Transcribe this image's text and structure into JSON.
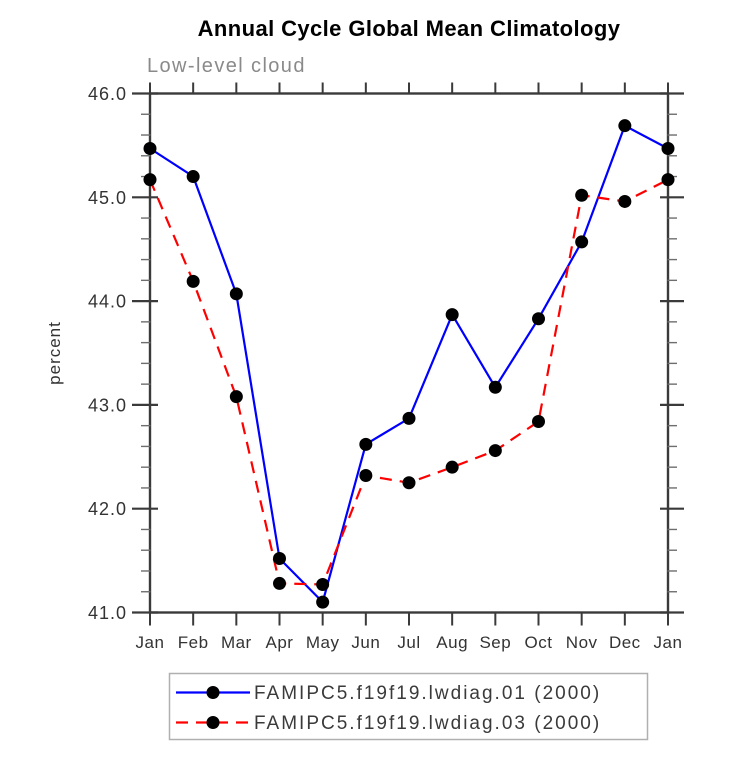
{
  "title": "Annual Cycle Global Mean Climatology",
  "chart_data": {
    "type": "line",
    "title": "Annual Cycle Global Mean Climatology",
    "subtitle": "Low-level cloud",
    "ylabel": "percent",
    "xlabel": "",
    "categories": [
      "Jan",
      "Feb",
      "Mar",
      "Apr",
      "May",
      "Jun",
      "Jul",
      "Aug",
      "Sep",
      "Oct",
      "Nov",
      "Dec",
      "Jan"
    ],
    "ylim": [
      41.0,
      46.0
    ],
    "ytick_values": [
      41.0,
      42.0,
      43.0,
      44.0,
      45.0,
      46.0
    ],
    "ytick_labels": [
      "41.0",
      "42.0",
      "43.0",
      "44.0",
      "45.0",
      "46.0"
    ],
    "ytick_minor_step": 0.2,
    "grid": false,
    "legend_position": "bottom",
    "series": [
      {
        "name": "FAMIPC5.f19f19.lwdiag.01 (2000)",
        "color": "#0000ff",
        "dash": "solid",
        "marker": "filled-circle",
        "values": [
          45.47,
          45.2,
          44.07,
          41.52,
          41.1,
          42.62,
          42.87,
          43.87,
          43.17,
          43.83,
          44.57,
          45.69,
          45.47
        ]
      },
      {
        "name": "FAMIPC5.f19f19.lwdiag.03 (2000)",
        "color": "#ff0000",
        "dash": "dashed",
        "marker": "filled-circle",
        "values": [
          45.17,
          44.19,
          43.08,
          41.28,
          41.27,
          42.32,
          42.25,
          42.4,
          42.56,
          42.84,
          45.02,
          44.96,
          45.17
        ]
      }
    ]
  },
  "colors": {
    "title": "#000000",
    "subtitle": "#8a8a8a",
    "axis": "#3a3a3a",
    "minor_tick": "#6e6e6e",
    "tick_label": "#333333",
    "axis_title": "#333333",
    "marker": "#000000",
    "legend_border": "#b0b0b0",
    "legend_text": "#3a3a3a",
    "background": "#ffffff"
  }
}
